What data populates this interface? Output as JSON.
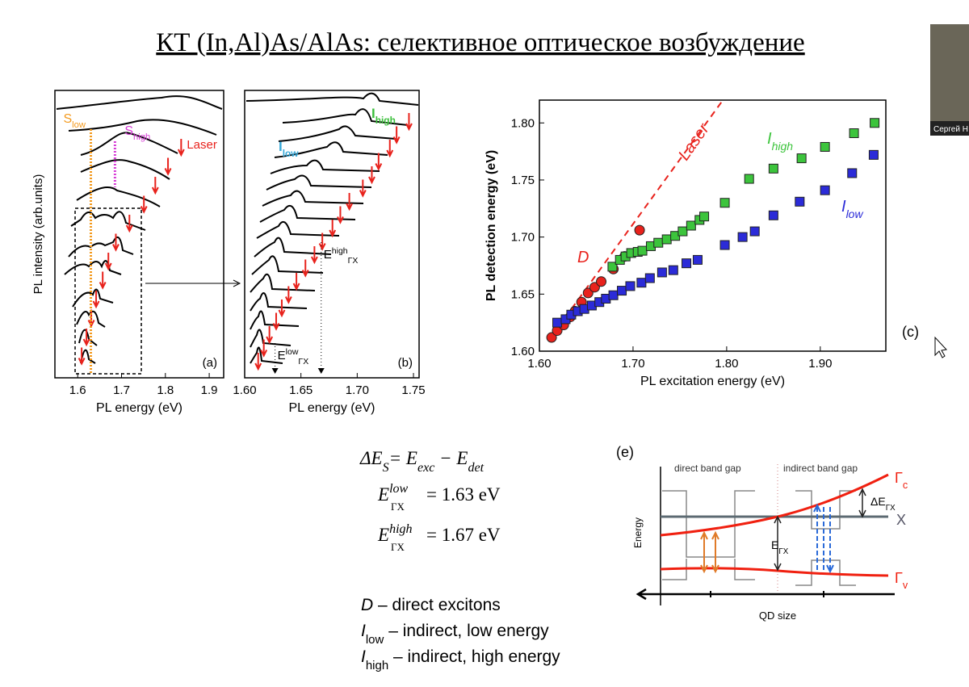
{
  "title": "КТ (In,Al)As/AlAs: селективное оптическое возбуждение",
  "chart_data": [
    {
      "type": "spectra",
      "label": "(a)",
      "x_label": "PL energy (eV)",
      "y_label": "PL intensity (arb.units)",
      "xlim": [
        1.548,
        1.933
      ],
      "xticks": [
        1.6,
        1.7,
        1.8,
        1.9
      ],
      "markers": [
        {
          "label": "S",
          "sub": "low",
          "x": 1.63,
          "color": "#f39a1e"
        },
        {
          "label": "S",
          "sub": "high",
          "x": 1.685,
          "color": "#d63bd6"
        }
      ],
      "laser": {
        "label": "Laser",
        "color": "#e8221c",
        "x": [
          1.836,
          1.806,
          1.777,
          1.751,
          1.718,
          1.687,
          1.67,
          1.657,
          1.642,
          1.631,
          1.62,
          1.609
        ]
      }
    },
    {
      "type": "spectra",
      "label": "(b)",
      "x_label": "PL energy (eV)",
      "xlim": [
        1.6,
        1.755
      ],
      "xticks": [
        {
          "value": 1.6,
          "label": "1.60"
        },
        1.65,
        {
          "value": 1.7,
          "label": "1.70"
        },
        1.75
      ],
      "annotations": [
        {
          "label": "I",
          "sub": "low",
          "color": "#35a8d8"
        },
        {
          "label": "I",
          "sub": "high",
          "color": "#3cbf3c"
        }
      ],
      "edges": [
        {
          "label": "E",
          "sup": "low",
          "sub": "ΓX",
          "x": 1.627
        },
        {
          "label": "E",
          "sup": "high",
          "sub": "ΓX",
          "x": 1.668
        }
      ],
      "laser": {
        "color": "#e8221c",
        "x": [
          1.746,
          1.735,
          1.729,
          1.719,
          1.713,
          1.705,
          1.693,
          1.685,
          1.678,
          1.669,
          1.662,
          1.654,
          1.646,
          1.639,
          1.633,
          1.628,
          1.622,
          1.617,
          1.612
        ]
      }
    },
    {
      "type": "scatter",
      "label": "(c)",
      "x_label": "PL excitation energy (eV)",
      "y_label": "PL detection energy (eV)",
      "xlim": [
        1.6,
        1.97
      ],
      "ylim": [
        1.6,
        1.82
      ],
      "xticks": [
        {
          "value": 1.6,
          "label": "1.60"
        },
        {
          "value": 1.7,
          "label": "1.70"
        },
        {
          "value": 1.8,
          "label": "1.80"
        },
        {
          "value": 1.9,
          "label": "1.90"
        }
      ],
      "yticks": [
        {
          "value": 1.6,
          "label": "1.60"
        },
        1.65,
        {
          "value": 1.7,
          "label": "1.70"
        },
        1.75,
        {
          "value": 1.8,
          "label": "1.80"
        }
      ],
      "series": [
        {
          "name": "Laser",
          "marker": "line",
          "color": "#e8221c",
          "x": [
            1.613,
            1.796
          ],
          "values": [
            1.613,
            1.82
          ]
        },
        {
          "name": "D",
          "marker": "circle",
          "color": "#e8221c",
          "x": [
            1.613,
            1.619,
            1.626,
            1.633,
            1.638,
            1.645,
            1.652,
            1.659,
            1.666,
            1.679,
            1.691,
            1.707
          ],
          "values": [
            1.612,
            1.618,
            1.623,
            1.63,
            1.635,
            1.643,
            1.651,
            1.656,
            1.661,
            1.672,
            1.683,
            1.706
          ]
        },
        {
          "name": "I",
          "name_sub": "high",
          "marker": "square",
          "color": "#3cc43c",
          "x": [
            1.678,
            1.686,
            1.692,
            1.698,
            1.705,
            1.71,
            1.719,
            1.727,
            1.736,
            1.745,
            1.753,
            1.762,
            1.771,
            1.776,
            1.798,
            1.824,
            1.85,
            1.88,
            1.905,
            1.936,
            1.958
          ],
          "values": [
            1.674,
            1.68,
            1.683,
            1.686,
            1.687,
            1.688,
            1.692,
            1.695,
            1.698,
            1.701,
            1.705,
            1.71,
            1.715,
            1.718,
            1.73,
            1.751,
            1.76,
            1.769,
            1.779,
            1.791,
            1.8
          ]
        },
        {
          "name": "I",
          "name_sub": "low",
          "marker": "square",
          "color": "#2b2bd8",
          "x": [
            1.619,
            1.628,
            1.634,
            1.641,
            1.648,
            1.656,
            1.664,
            1.671,
            1.679,
            1.688,
            1.697,
            1.709,
            1.718,
            1.731,
            1.743,
            1.757,
            1.769,
            1.798,
            1.817,
            1.83,
            1.85,
            1.878,
            1.905,
            1.934,
            1.957
          ],
          "values": [
            1.625,
            1.628,
            1.632,
            1.635,
            1.637,
            1.64,
            1.643,
            1.646,
            1.649,
            1.653,
            1.657,
            1.66,
            1.664,
            1.669,
            1.671,
            1.677,
            1.68,
            1.693,
            1.7,
            1.705,
            1.719,
            1.731,
            1.741,
            1.756,
            1.772
          ]
        }
      ]
    }
  ],
  "formulas": [
    [
      "ΔE",
      "S",
      "= ",
      "E",
      "exc",
      " − ",
      "E",
      "det"
    ],
    [
      "E",
      "low",
      "ΓX",
      "= 1.63 eV"
    ],
    [
      "E",
      "high",
      "ΓX",
      "= 1.67 eV"
    ]
  ],
  "notes": [
    {
      "symbol": "D",
      "text": " – direct excitons"
    },
    {
      "symbol": "I",
      "sub": "low",
      "text": " – indirect, low energy"
    },
    {
      "symbol": "I",
      "sub": "high",
      "text": " – indirect, high energy"
    }
  ],
  "diagram": {
    "label": "(e)",
    "regions": [
      "direct band gap",
      "indirect band gap"
    ],
    "y_axis": "Energy",
    "x_axis": "QD size",
    "bands": [
      {
        "symbol": "Γ",
        "sub": "c"
      },
      {
        "symbol": "X"
      },
      {
        "symbol": "Γ",
        "sub": "v"
      }
    ],
    "gaps": [
      {
        "symbol": "ΔE",
        "sub": "ΓX"
      },
      {
        "symbol": "E",
        "sub": "ΓX"
      }
    ]
  },
  "webcam": {
    "name": "Сергей Н"
  }
}
